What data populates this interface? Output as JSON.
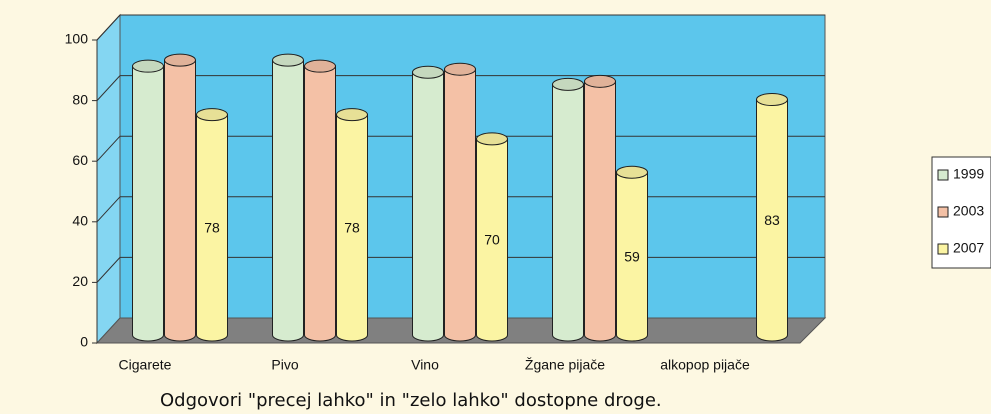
{
  "chart_data": {
    "type": "bar3d",
    "caption": "Odgovori \"precej lahko\" in \"zelo lahko\" dostopne droge.",
    "categories": [
      "Cigarete",
      "Pivo",
      "Vino",
      "Žgane pijače",
      "alkopop pijače"
    ],
    "series": [
      {
        "name": "1999",
        "color": "#d6ebcf",
        "values": [
          94,
          96,
          92,
          88,
          null
        ]
      },
      {
        "name": "2003",
        "color": "#f4c1a6",
        "values": [
          96,
          94,
          93,
          89,
          null
        ]
      },
      {
        "name": "2007",
        "color": "#fbf4a3",
        "values": [
          78,
          78,
          70,
          59,
          83
        ],
        "data_labels": true
      }
    ],
    "ylim": [
      0,
      100
    ],
    "yticks": [
      0,
      20,
      40,
      60,
      80,
      100
    ],
    "grid": true,
    "legend": "right"
  }
}
